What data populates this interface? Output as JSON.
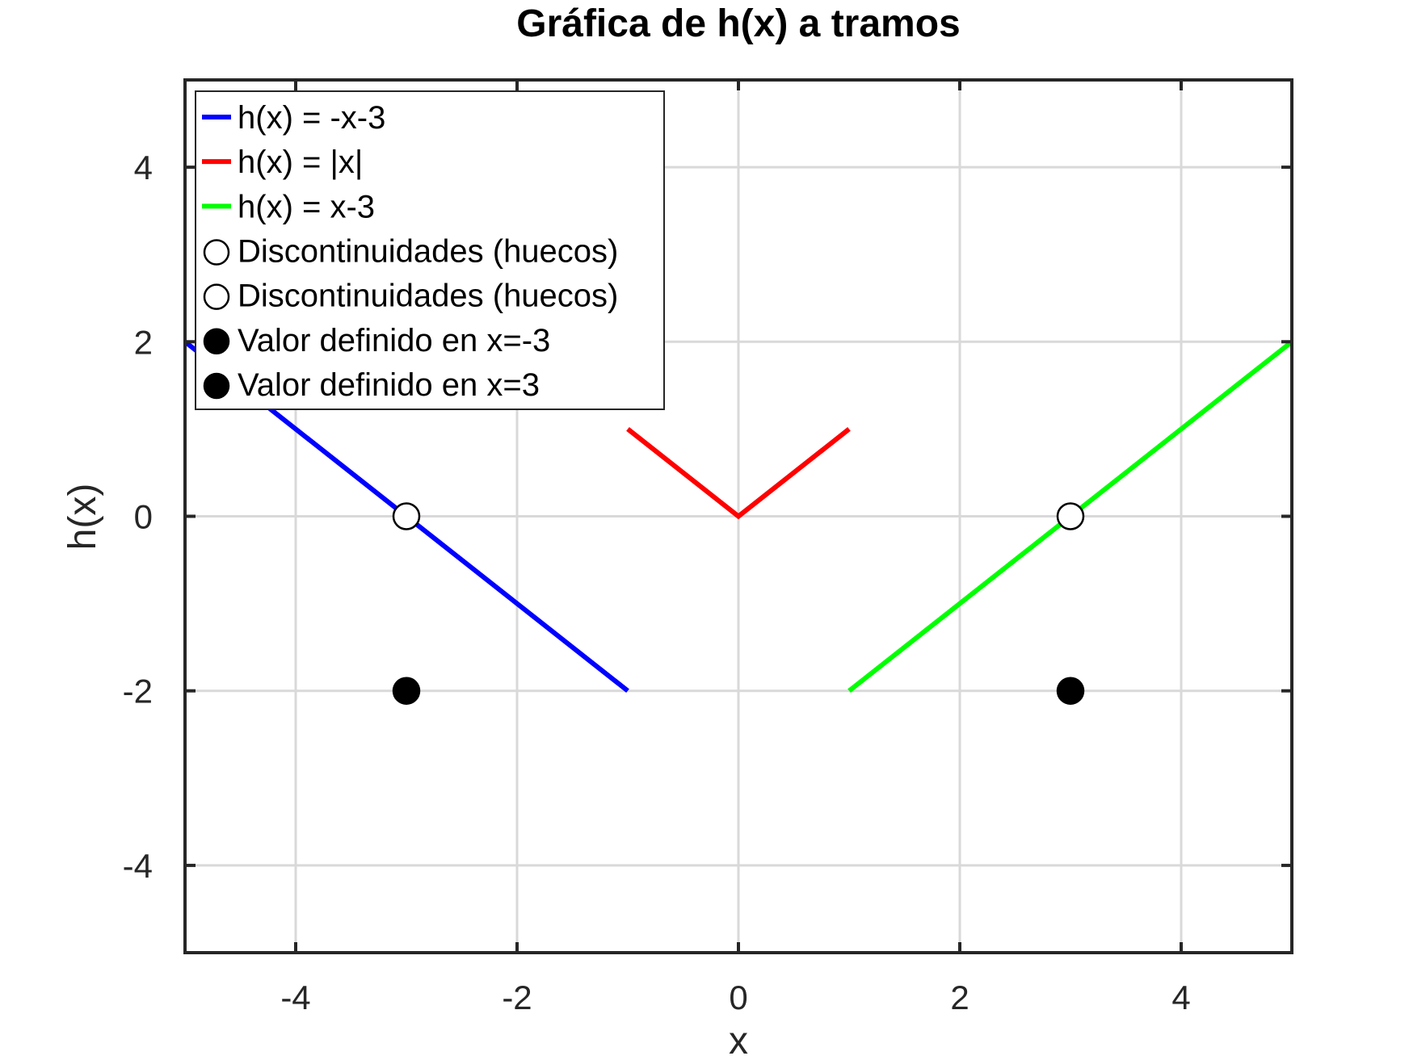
{
  "chart_data": {
    "type": "line",
    "title": "Gráfica de h(x) a tramos",
    "xlabel": "x",
    "ylabel": "h(x)",
    "xlim": [
      -5,
      5
    ],
    "ylim": [
      -5,
      5
    ],
    "xticks": [
      -4,
      -2,
      0,
      2,
      4
    ],
    "yticks": [
      -4,
      -2,
      0,
      2,
      4
    ],
    "grid": true,
    "legend_position": "top-left",
    "series": [
      {
        "name": "h(x) = -x-3",
        "kind": "line",
        "color": "#0000ff",
        "x": [
          -5,
          -1
        ],
        "y": [
          2,
          -2
        ]
      },
      {
        "name": "h(x) = |x|",
        "kind": "line",
        "color": "#ff0000",
        "x": [
          -1,
          0,
          1
        ],
        "y": [
          1,
          0,
          1
        ]
      },
      {
        "name": "h(x) = x-3",
        "kind": "line",
        "color": "#00ff00",
        "x": [
          1,
          5
        ],
        "y": [
          -2,
          2
        ]
      },
      {
        "name": "Discontinuidades (huecos)",
        "kind": "open-marker",
        "color": "#000000",
        "x": [
          -3
        ],
        "y": [
          0
        ]
      },
      {
        "name": "Discontinuidades (huecos)",
        "kind": "open-marker",
        "color": "#000000",
        "x": [
          3
        ],
        "y": [
          0
        ]
      },
      {
        "name": "Valor definido en x=-3",
        "kind": "filled-marker",
        "color": "#000000",
        "x": [
          -3
        ],
        "y": [
          -2
        ]
      },
      {
        "name": "Valor definido en x=3",
        "kind": "filled-marker",
        "color": "#000000",
        "x": [
          3
        ],
        "y": [
          -2
        ]
      }
    ]
  }
}
